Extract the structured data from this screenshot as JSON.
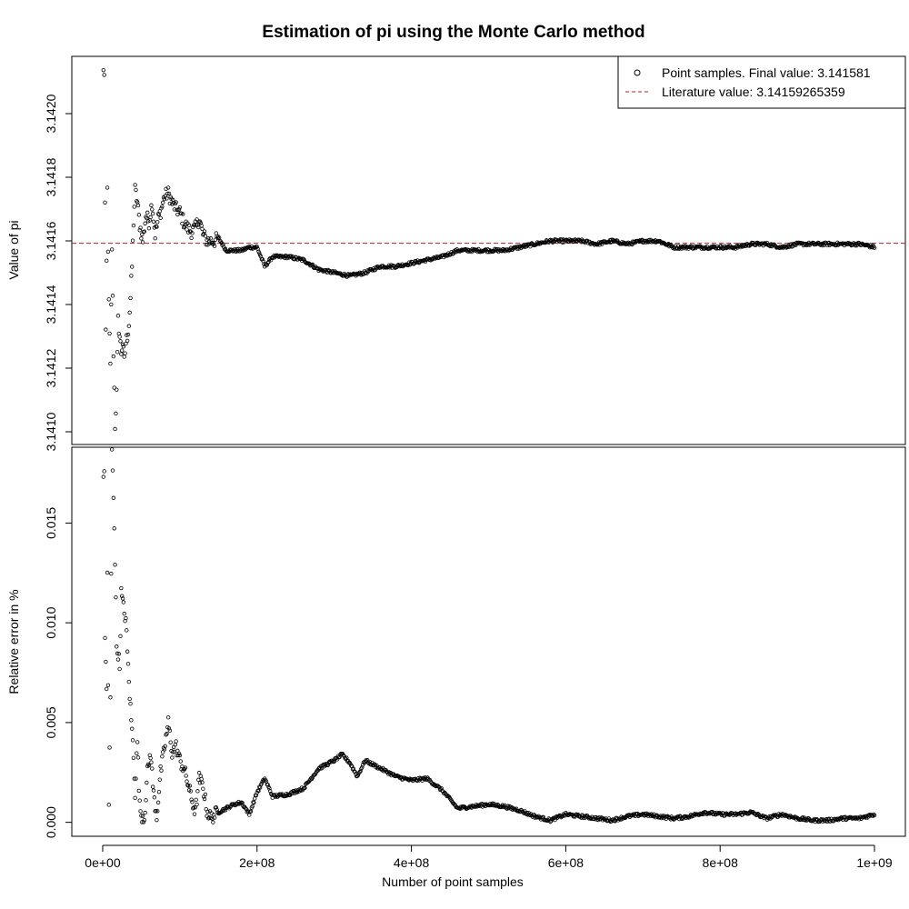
{
  "chart_data": {
    "type": "scatter",
    "title": "Estimation of pi using the Monte Carlo method",
    "xlabel": "Number of point samples",
    "x_ticks": [
      {
        "value": 0,
        "label": "0e+00"
      },
      {
        "value": 200000000,
        "label": "2e+08"
      },
      {
        "value": 400000000,
        "label": "4e+08"
      },
      {
        "value": 600000000,
        "label": "6e+08"
      },
      {
        "value": 800000000,
        "label": "8e+08"
      },
      {
        "value": 1000000000,
        "label": "1e+09"
      }
    ],
    "xlim": [
      -40000000,
      1040000000
    ],
    "panels": [
      {
        "id": "value",
        "ylabel": "Value of pi",
        "ylim": [
          3.14096,
          3.14218
        ],
        "y_ticks": [
          {
            "value": 3.141,
            "label": "3.1410"
          },
          {
            "value": 3.1412,
            "label": "3.1412"
          },
          {
            "value": 3.1414,
            "label": "3.1414"
          },
          {
            "value": 3.1416,
            "label": "3.1416"
          },
          {
            "value": 3.1418,
            "label": "3.1418"
          },
          {
            "value": 3.142,
            "label": "3.1420"
          }
        ],
        "reference_line": {
          "y": 3.14159265359,
          "color": "#b22222",
          "style": "dashed"
        },
        "legend": {
          "position": "top-right",
          "entries": [
            {
              "symbol": "open-circle",
              "label": "Point samples. Final value:  3.141581"
            },
            {
              "symbol": "dashed-line",
              "color": "#b22222",
              "label": "Literature value:  3.14159265359"
            }
          ]
        },
        "series_keypoints": [
          [
            2000000,
            3.14213
          ],
          [
            4000000,
            3.1413
          ],
          [
            6000000,
            3.14176
          ],
          [
            8000000,
            3.1414
          ],
          [
            10000000,
            3.1412
          ],
          [
            12000000,
            3.14158
          ],
          [
            14000000,
            3.14125
          ],
          [
            16000000,
            3.14102
          ],
          [
            18000000,
            3.14112
          ],
          [
            20000000,
            3.14135
          ],
          [
            22000000,
            3.1413
          ],
          [
            24000000,
            3.14125
          ],
          [
            26000000,
            3.14128
          ],
          [
            28000000,
            3.14122
          ],
          [
            30000000,
            3.14128
          ],
          [
            32000000,
            3.1413
          ],
          [
            34000000,
            3.14134
          ],
          [
            36000000,
            3.14142
          ],
          [
            38000000,
            3.14152
          ],
          [
            40000000,
            3.14166
          ],
          [
            42000000,
            3.14176
          ],
          [
            45000000,
            3.14172
          ],
          [
            48000000,
            3.14165
          ],
          [
            52000000,
            3.1416
          ],
          [
            56000000,
            3.14168
          ],
          [
            60000000,
            3.14166
          ],
          [
            64000000,
            3.14172
          ],
          [
            68000000,
            3.14162
          ],
          [
            72000000,
            3.14167
          ],
          [
            76000000,
            3.1417
          ],
          [
            80000000,
            3.14174
          ],
          [
            85000000,
            3.14175
          ],
          [
            90000000,
            3.14172
          ],
          [
            95000000,
            3.1417
          ],
          [
            100000000,
            3.14169
          ],
          [
            105000000,
            3.14166
          ],
          [
            110000000,
            3.14164
          ],
          [
            115000000,
            3.14163
          ],
          [
            120000000,
            3.14164
          ],
          [
            125000000,
            3.14167
          ],
          [
            130000000,
            3.14162
          ],
          [
            135000000,
            3.1416
          ],
          [
            140000000,
            3.1416
          ],
          [
            145000000,
            3.1416
          ],
          [
            150000000,
            3.14161
          ],
          [
            160000000,
            3.14157
          ],
          [
            170000000,
            3.14157
          ],
          [
            180000000,
            3.14157
          ],
          [
            190000000,
            3.14158
          ],
          [
            200000000,
            3.14158
          ],
          [
            210000000,
            3.14152
          ],
          [
            220000000,
            3.14155
          ],
          [
            240000000,
            3.14155
          ],
          [
            260000000,
            3.14154
          ],
          [
            280000000,
            3.14151
          ],
          [
            300000000,
            3.1415
          ],
          [
            320000000,
            3.14149
          ],
          [
            340000000,
            3.1415
          ],
          [
            360000000,
            3.14152
          ],
          [
            380000000,
            3.14152
          ],
          [
            400000000,
            3.14153
          ],
          [
            420000000,
            3.14154
          ],
          [
            440000000,
            3.14155
          ],
          [
            460000000,
            3.14157
          ],
          [
            480000000,
            3.14157
          ],
          [
            500000000,
            3.14157
          ],
          [
            520000000,
            3.14157
          ],
          [
            540000000,
            3.14158
          ],
          [
            560000000,
            3.14159
          ],
          [
            580000000,
            3.1416
          ],
          [
            600000000,
            3.1416
          ],
          [
            620000000,
            3.1416
          ],
          [
            640000000,
            3.14159
          ],
          [
            660000000,
            3.1416
          ],
          [
            680000000,
            3.14159
          ],
          [
            700000000,
            3.1416
          ],
          [
            720000000,
            3.1416
          ],
          [
            740000000,
            3.14158
          ],
          [
            760000000,
            3.14158
          ],
          [
            780000000,
            3.14158
          ],
          [
            800000000,
            3.14158
          ],
          [
            820000000,
            3.14158
          ],
          [
            840000000,
            3.14159
          ],
          [
            860000000,
            3.14159
          ],
          [
            880000000,
            3.14158
          ],
          [
            900000000,
            3.14159
          ],
          [
            920000000,
            3.14159
          ],
          [
            940000000,
            3.14159
          ],
          [
            960000000,
            3.14159
          ],
          [
            980000000,
            3.14159
          ],
          [
            1000000000,
            3.141581
          ]
        ]
      },
      {
        "id": "error",
        "ylabel": "Relative error in %",
        "ylim": [
          -0.0007,
          0.0188
        ],
        "y_ticks": [
          {
            "value": 0,
            "label": "0.000"
          },
          {
            "value": 0.005,
            "label": "0.005"
          },
          {
            "value": 0.01,
            "label": "0.010"
          },
          {
            "value": 0.015,
            "label": "0.015"
          }
        ],
        "series_keypoints": [
          [
            2000000,
            0.0174
          ],
          [
            3000000,
            0.0092
          ],
          [
            5000000,
            0.0068
          ],
          [
            6000000,
            0.0125
          ],
          [
            8000000,
            0.0008
          ],
          [
            10000000,
            0.0063
          ],
          [
            12000000,
            0.0185
          ],
          [
            13000000,
            0.0178
          ],
          [
            15000000,
            0.015
          ],
          [
            17000000,
            0.011
          ],
          [
            18000000,
            0.0088
          ],
          [
            20000000,
            0.0085
          ],
          [
            22000000,
            0.0078
          ],
          [
            24000000,
            0.0115
          ],
          [
            26000000,
            0.011
          ],
          [
            28000000,
            0.0105
          ],
          [
            30000000,
            0.0102
          ],
          [
            32000000,
            0.0085
          ],
          [
            34000000,
            0.0071
          ],
          [
            36000000,
            0.0057
          ],
          [
            38000000,
            0.0046
          ],
          [
            40000000,
            0.0034
          ],
          [
            42000000,
            0.0015
          ],
          [
            45000000,
            0.0041
          ],
          [
            48000000,
            0.0008
          ],
          [
            50000000,
            0.0004
          ],
          [
            54000000,
            0.0002
          ],
          [
            58000000,
            0.0025
          ],
          [
            62000000,
            0.0035
          ],
          [
            66000000,
            0.0014
          ],
          [
            70000000,
            0.0003
          ],
          [
            75000000,
            0.0025
          ],
          [
            80000000,
            0.0037
          ],
          [
            85000000,
            0.005
          ],
          [
            90000000,
            0.0035
          ],
          [
            95000000,
            0.0038
          ],
          [
            100000000,
            0.0031
          ],
          [
            105000000,
            0.0027
          ],
          [
            110000000,
            0.002
          ],
          [
            115000000,
            0.0012
          ],
          [
            120000000,
            0.0005
          ],
          [
            125000000,
            0.0022
          ],
          [
            130000000,
            0.0018
          ],
          [
            135000000,
            0.0006
          ],
          [
            140000000,
            0.0002
          ],
          [
            145000000,
            0.0004
          ],
          [
            150000000,
            0.0005
          ],
          [
            160000000,
            0.0007
          ],
          [
            170000000,
            0.0009
          ],
          [
            180000000,
            0.001
          ],
          [
            190000000,
            0.0004
          ],
          [
            200000000,
            0.0015
          ],
          [
            210000000,
            0.0022
          ],
          [
            220000000,
            0.0013
          ],
          [
            240000000,
            0.0014
          ],
          [
            260000000,
            0.0017
          ],
          [
            280000000,
            0.0027
          ],
          [
            300000000,
            0.0031
          ],
          [
            310000000,
            0.0034
          ],
          [
            320000000,
            0.003
          ],
          [
            330000000,
            0.0023
          ],
          [
            340000000,
            0.0031
          ],
          [
            360000000,
            0.0027
          ],
          [
            380000000,
            0.0023
          ],
          [
            400000000,
            0.0021
          ],
          [
            420000000,
            0.0022
          ],
          [
            440000000,
            0.0016
          ],
          [
            460000000,
            0.0007
          ],
          [
            480000000,
            0.0008
          ],
          [
            500000000,
            0.0009
          ],
          [
            520000000,
            0.0008
          ],
          [
            540000000,
            0.0006
          ],
          [
            560000000,
            0.0003
          ],
          [
            580000000,
            0.0001
          ],
          [
            600000000,
            0.0004
          ],
          [
            620000000,
            0.0003
          ],
          [
            640000000,
            0.0002
          ],
          [
            660000000,
            0.0001
          ],
          [
            680000000,
            0.0003
          ],
          [
            700000000,
            0.0004
          ],
          [
            720000000,
            0.0003
          ],
          [
            740000000,
            0.0002
          ],
          [
            760000000,
            0.0003
          ],
          [
            780000000,
            0.0005
          ],
          [
            800000000,
            0.0004
          ],
          [
            820000000,
            0.0004
          ],
          [
            840000000,
            0.0005
          ],
          [
            860000000,
            0.0002
          ],
          [
            880000000,
            0.0004
          ],
          [
            900000000,
            0.0002
          ],
          [
            920000000,
            0.0001
          ],
          [
            940000000,
            0.0001
          ],
          [
            960000000,
            0.0002
          ],
          [
            980000000,
            0.0002
          ],
          [
            1000000000,
            0.0004
          ]
        ]
      }
    ]
  }
}
